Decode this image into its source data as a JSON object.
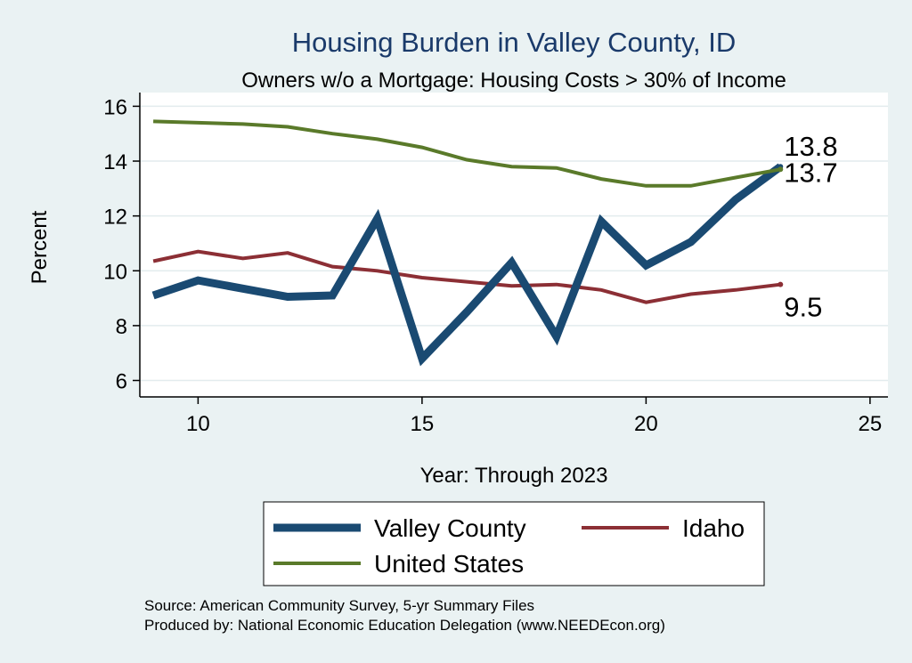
{
  "chart_data": {
    "type": "line",
    "title": "Housing Burden in Valley County, ID",
    "subtitle": "Owners w/o a Mortgage: Housing Costs > 30% of Income",
    "xlabel": "Year: Through 2023",
    "ylabel": "Percent",
    "xlim": [
      8.7,
      25.4
    ],
    "ylim": [
      5.4,
      16.5
    ],
    "x_ticks": [
      10,
      15,
      20,
      25
    ],
    "y_ticks": [
      6,
      8,
      10,
      12,
      14,
      16
    ],
    "grid": true,
    "legend_position": "bottom",
    "x": [
      9,
      10,
      11,
      12,
      13,
      14,
      15,
      16,
      17,
      18,
      19,
      20,
      21,
      22,
      23
    ],
    "series": [
      {
        "name": "Valley County",
        "color": "#1a4a72",
        "width": 9,
        "values": [
          9.1,
          9.65,
          9.35,
          9.05,
          9.1,
          11.9,
          6.8,
          8.5,
          10.3,
          7.6,
          11.8,
          10.2,
          11.05,
          12.6,
          13.8
        ],
        "end_label": "13.8"
      },
      {
        "name": "Idaho",
        "color": "#8c2f35",
        "width": 4,
        "values": [
          10.35,
          10.7,
          10.45,
          10.65,
          10.15,
          10.0,
          9.75,
          9.6,
          9.45,
          9.5,
          9.3,
          8.85,
          9.15,
          9.3,
          9.5
        ],
        "end_label": "9.5"
      },
      {
        "name": "United States",
        "color": "#5a7a2a",
        "width": 4,
        "values": [
          15.45,
          15.4,
          15.35,
          15.25,
          15.0,
          14.8,
          14.5,
          14.05,
          13.8,
          13.75,
          13.35,
          13.1,
          13.1,
          13.4,
          13.7
        ],
        "end_label": "13.7"
      }
    ]
  },
  "notes": [
    "Source: American Community Survey, 5-yr Summary Files",
    "Produced by: National Economic Education Delegation (www.NEEDEcon.org)"
  ]
}
